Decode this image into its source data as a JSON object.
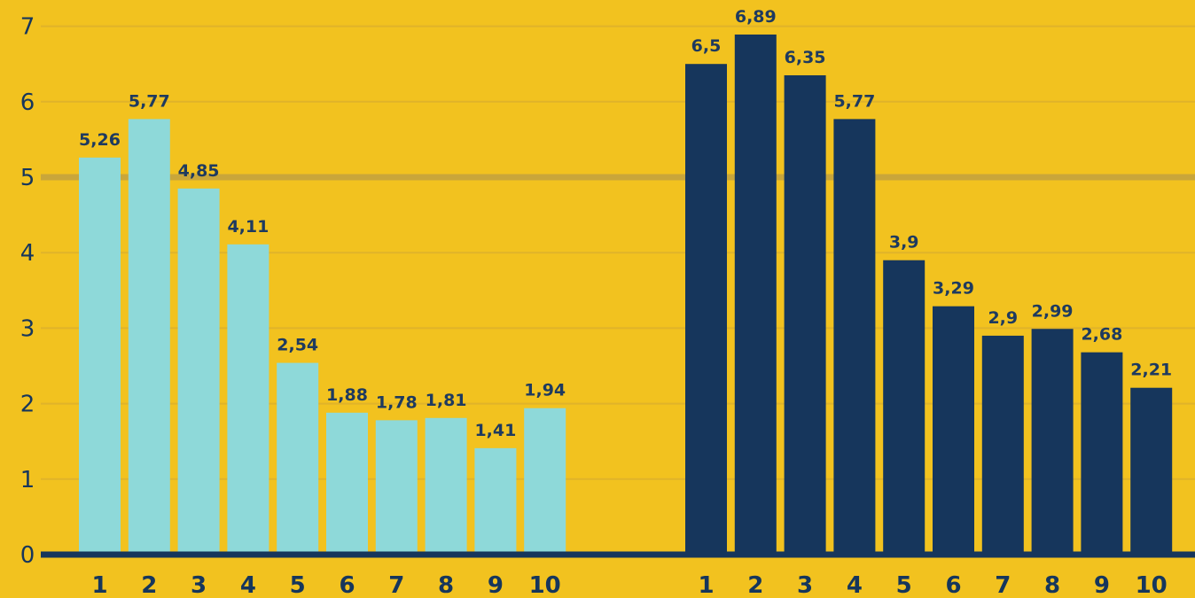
{
  "chart_data": {
    "type": "bar",
    "ylim": [
      0,
      7
    ],
    "yticks": [
      "0",
      "1",
      "2",
      "3",
      "4",
      "5",
      "6",
      "7"
    ],
    "grid": true,
    "highlight_gridline": 5,
    "colors": {
      "background": "#F2C21F",
      "gridline": "#E0B32A",
      "gridline_highlight": "#C9A63A",
      "axis": "#16365C",
      "text": "#1E3A5F"
    },
    "groups": [
      {
        "categories": [
          "1",
          "2",
          "3",
          "4",
          "5",
          "6",
          "7",
          "8",
          "9",
          "10"
        ],
        "values": [
          5.26,
          5.77,
          4.85,
          4.11,
          2.54,
          1.88,
          1.78,
          1.81,
          1.41,
          1.94
        ],
        "labels": [
          "5,26",
          "5,77",
          "4,85",
          "4,11",
          "2,54",
          "1,88",
          "1,78",
          "1,81",
          "1,41",
          "1,94"
        ],
        "color": "#8ED9D9"
      },
      {
        "categories": [
          "1",
          "2",
          "3",
          "4",
          "5",
          "6",
          "7",
          "8",
          "9",
          "10"
        ],
        "values": [
          6.5,
          6.89,
          6.35,
          5.77,
          3.9,
          3.29,
          2.9,
          2.99,
          2.68,
          2.21
        ],
        "labels": [
          "6,5",
          "6,89",
          "6,35",
          "5,77",
          "3,9",
          "3,29",
          "2,9",
          "2,99",
          "2,68",
          "2,21"
        ],
        "color": "#16365C"
      }
    ]
  }
}
